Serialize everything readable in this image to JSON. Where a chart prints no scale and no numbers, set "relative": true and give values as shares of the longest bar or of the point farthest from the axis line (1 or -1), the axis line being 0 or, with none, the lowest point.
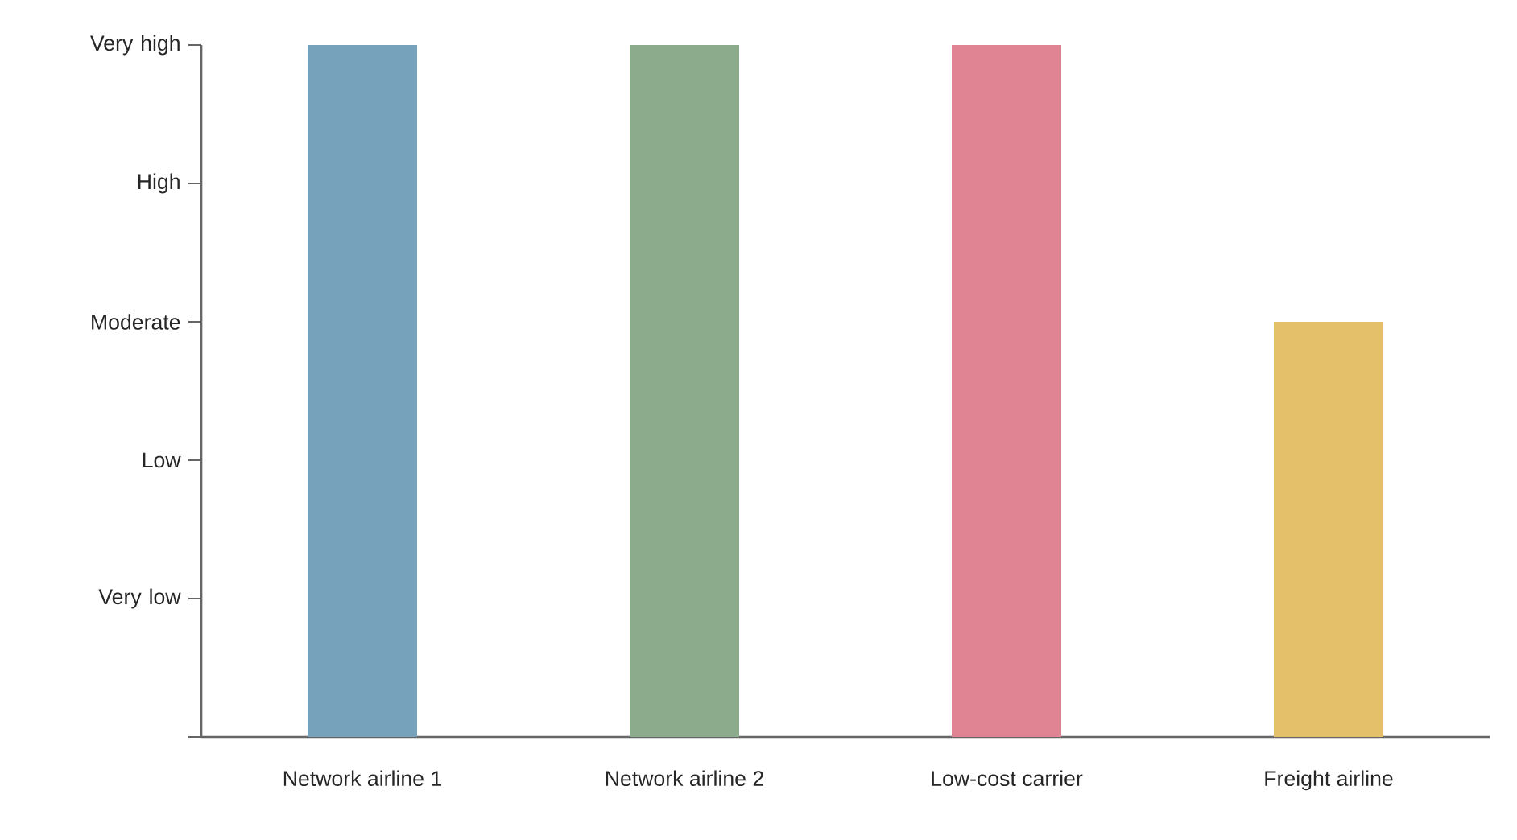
{
  "chart_data": {
    "type": "bar",
    "categories": [
      "Network airline 1",
      "Network airline 2",
      "Low-cost carrier",
      "Freight airline"
    ],
    "values": [
      1,
      1,
      1,
      0.6
    ],
    "colors": [
      "#76a2bc",
      "#8caa8c",
      "#e08392",
      "#e5c06b"
    ],
    "relative": true,
    "annotations": [
      "Very low",
      "Low",
      "Moderate",
      "High",
      "Very high"
    ]
  }
}
